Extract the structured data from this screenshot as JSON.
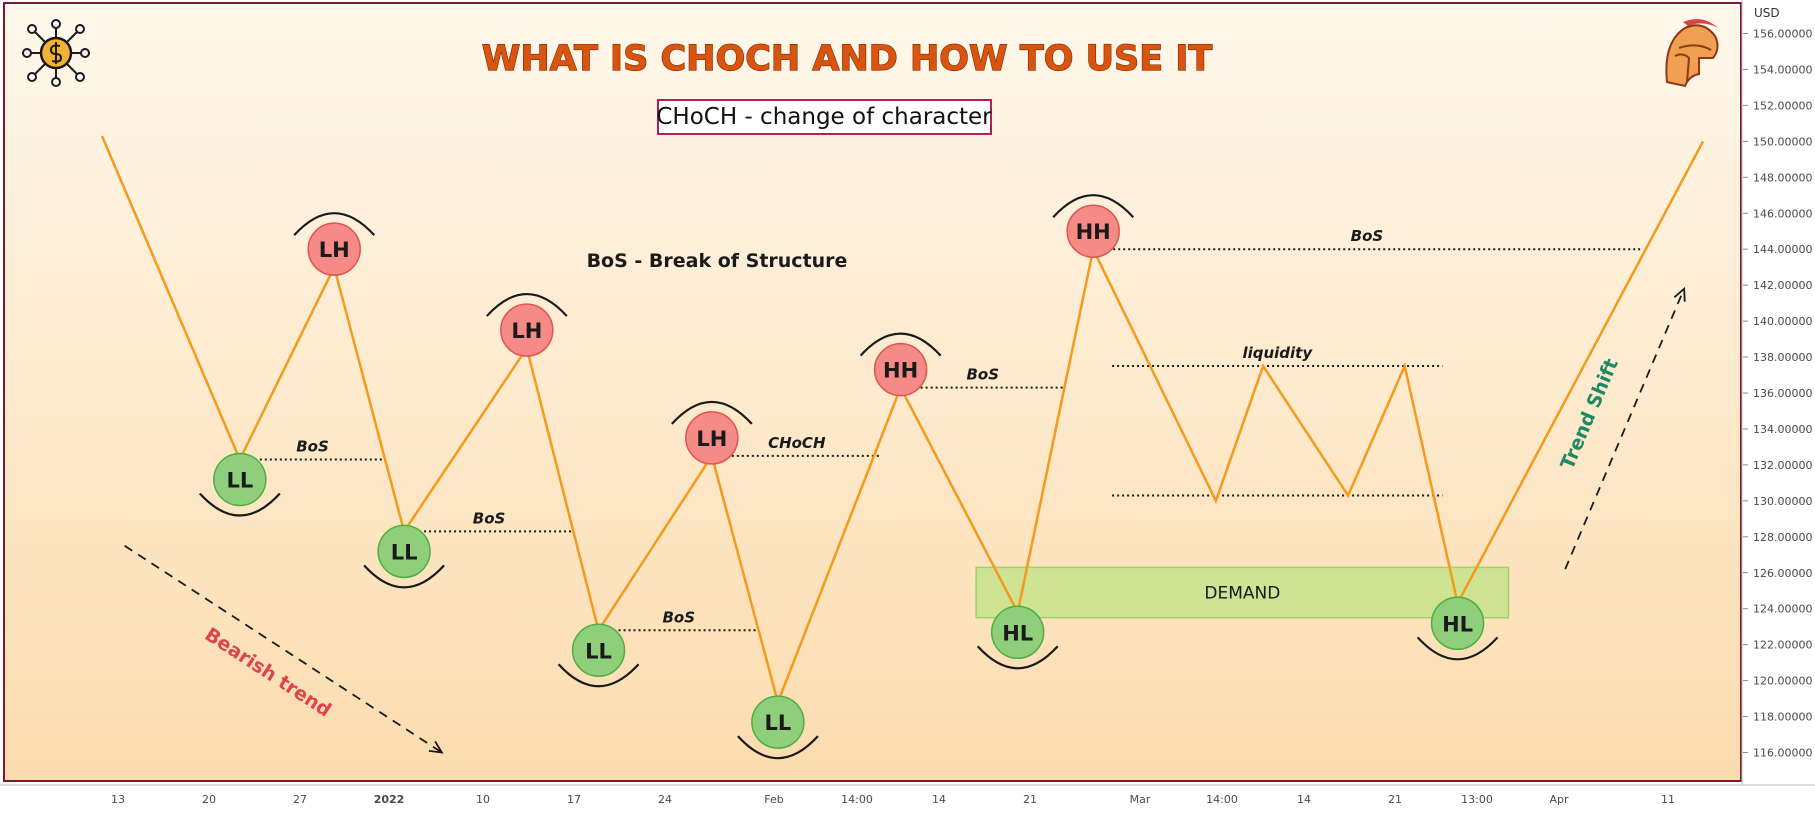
{
  "header": {
    "title": "WHAT IS CHOCH AND HOW TO USE IT",
    "subtitle": "CHoCH - change of character",
    "bos_caption": "BoS - Break of Structure"
  },
  "price_axis": {
    "currency": "USD",
    "ticks": [
      "156.00000",
      "154.00000",
      "152.00000",
      "150.00000",
      "148.00000",
      "146.00000",
      "144.00000",
      "142.00000",
      "140.00000",
      "138.00000",
      "136.00000",
      "134.00000",
      "132.00000",
      "130.00000",
      "128.00000",
      "126.00000",
      "124.00000",
      "122.00000",
      "120.00000",
      "118.00000",
      "116.00000"
    ]
  },
  "time_axis": {
    "ticks": [
      "13",
      "20",
      "27",
      "2022",
      "10",
      "17",
      "24",
      "Feb",
      "14:00",
      "14",
      "21",
      "Mar",
      "14:00",
      "14",
      "21",
      "13:00",
      "Apr",
      "11"
    ]
  },
  "colors": {
    "background_top": "#fff8ec",
    "background_bottom": "#fcdcae",
    "frame": "#7a1a2e",
    "price_line": "#f59a1b",
    "high_bubble": "#f58a86",
    "low_bubble": "#8fcf7c",
    "demand_zone": "#c5e38c",
    "bearish_text": "#e0434d",
    "trend_shift_text": "#1e8a63"
  },
  "chart_data": {
    "type": "line",
    "title": "WHAT IS CHOCH AND HOW TO USE IT",
    "xlabel": "",
    "ylabel": "USD",
    "ylim": [
      114.5,
      157
    ],
    "grid": false,
    "series": [
      {
        "points": [
          {
            "x": 0.0,
            "y": 150.3
          },
          {
            "x": 7.3,
            "y": 132.3
          },
          {
            "x": 12.3,
            "y": 143.0
          },
          {
            "x": 16.0,
            "y": 128.3
          },
          {
            "x": 22.5,
            "y": 138.5
          },
          {
            "x": 26.3,
            "y": 122.8
          },
          {
            "x": 32.3,
            "y": 132.5
          },
          {
            "x": 35.8,
            "y": 118.8
          },
          {
            "x": 42.3,
            "y": 136.3
          },
          {
            "x": 48.5,
            "y": 123.8
          },
          {
            "x": 52.5,
            "y": 144.0
          },
          {
            "x": 59.0,
            "y": 130.0
          },
          {
            "x": 61.5,
            "y": 137.5
          },
          {
            "x": 66.0,
            "y": 130.3
          },
          {
            "x": 69.0,
            "y": 137.5
          },
          {
            "x": 71.8,
            "y": 124.3
          },
          {
            "x": 84.8,
            "y": 150.0
          }
        ]
      }
    ],
    "swing_labels": [
      {
        "label": "LL",
        "x": 7.3,
        "y": 132.3,
        "type": "low"
      },
      {
        "label": "LH",
        "x": 12.3,
        "y": 143.0,
        "type": "high"
      },
      {
        "label": "LL",
        "x": 16.0,
        "y": 128.3,
        "type": "low"
      },
      {
        "label": "LH",
        "x": 22.5,
        "y": 138.5,
        "type": "high"
      },
      {
        "label": "LL",
        "x": 26.3,
        "y": 122.8,
        "type": "low"
      },
      {
        "label": "LH",
        "x": 32.3,
        "y": 132.5,
        "type": "high"
      },
      {
        "label": "LL",
        "x": 35.8,
        "y": 118.8,
        "type": "low"
      },
      {
        "label": "HH",
        "x": 42.3,
        "y": 136.3,
        "type": "high"
      },
      {
        "label": "HL",
        "x": 48.5,
        "y": 123.8,
        "type": "low"
      },
      {
        "label": "HH",
        "x": 52.5,
        "y": 144.0,
        "type": "high"
      },
      {
        "label": "HL",
        "x": 71.8,
        "y": 124.3,
        "type": "low"
      }
    ],
    "levels": [
      {
        "label": "BoS",
        "y": 132.3,
        "x1": 7.3,
        "x2": 15.0
      },
      {
        "label": "BoS",
        "y": 128.3,
        "x1": 16.0,
        "x2": 25.0
      },
      {
        "label": "BoS",
        "y": 122.8,
        "x1": 26.3,
        "x2": 34.8
      },
      {
        "label": "CHoCH",
        "y": 132.5,
        "x1": 32.3,
        "x2": 41.3
      },
      {
        "label": "BoS",
        "y": 136.3,
        "x1": 42.3,
        "x2": 51.0
      },
      {
        "label": "BoS",
        "y": 144.0,
        "x1": 52.5,
        "x2": 81.5
      },
      {
        "label": "liquidity",
        "y": 137.5,
        "x1": 53.5,
        "x2": 71.0
      },
      {
        "label": "",
        "y": 130.3,
        "x1": 53.5,
        "x2": 71.0
      }
    ],
    "zones": [
      {
        "label": "DEMAND",
        "x1": 46.3,
        "x2": 74.5,
        "y1": 123.5,
        "y2": 126.3
      }
    ],
    "annotations": [
      {
        "text": "Bearish trend",
        "x1": 1.2,
        "y1": 127.5,
        "x2": 18.0,
        "y2": 116.0
      },
      {
        "text": "Trend Shift",
        "x1": 77.5,
        "y1": 126.2,
        "x2": 83.8,
        "y2": 141.8
      }
    ]
  }
}
